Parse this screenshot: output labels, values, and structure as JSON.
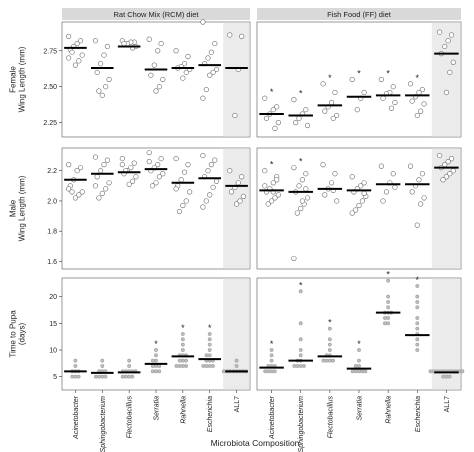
{
  "chart_data": {
    "type": "scatter",
    "facets": {
      "columns": [
        "Rat Chow Mix (RCM) diet",
        "Fish Food (FF) diet"
      ],
      "rows": [
        {
          "id": "female",
          "ylabel": "Female\nWing Length (mm)",
          "ylim": [
            2.15,
            2.95
          ],
          "yticks": [
            "2.25",
            "2.50",
            "2.75"
          ],
          "ytick_values": [
            2.25,
            2.5,
            2.75
          ]
        },
        {
          "id": "male",
          "ylabel": "Male\nWing Length (mm)",
          "ylim": [
            1.55,
            2.35
          ],
          "yticks": [
            "1.6",
            "1.8",
            "2.0",
            "2.2"
          ],
          "ytick_values": [
            1.6,
            1.8,
            2.0,
            2.2
          ]
        },
        {
          "id": "pupa",
          "ylabel": "Time to Pupa\n(days)",
          "ylim": [
            2.5,
            23.5
          ],
          "yticks": [
            "5",
            "10",
            "15",
            "20"
          ],
          "ytick_values": [
            5,
            10,
            15,
            20
          ]
        }
      ]
    },
    "categories": [
      "Acinetobacter",
      "Sphingobacterium",
      "Flectobacillus",
      "Serratia",
      "Rahnella",
      "Escherichia",
      "ALL7"
    ],
    "xlabel": "Microbiota Composition",
    "highlight_category": "ALL7",
    "marker_colors": {
      "open": "#ffffff",
      "stroke": "#666666",
      "pupa_fill": "#bdbdbd",
      "mean": "#000000",
      "panel_bg": "#ebebeb",
      "strip_bg": "#d9d9d9"
    },
    "panels": {
      "female": {
        "RCM": {
          "means": [
            2.77,
            2.63,
            2.78,
            2.62,
            2.63,
            2.65,
            2.63
          ],
          "significant": [
            false,
            false,
            false,
            false,
            false,
            false,
            false
          ],
          "points": [
            [
              2.85,
              2.82,
              2.8,
              2.78,
              2.76,
              2.72,
              2.68,
              2.65,
              2.74,
              2.7
            ],
            [
              2.82,
              2.78,
              2.72,
              2.66,
              2.6,
              2.55,
              2.5,
              2.44,
              2.47
            ],
            [
              2.82,
              2.81,
              2.81,
              2.8,
              2.8,
              2.78,
              2.77
            ],
            [
              2.83,
              2.8,
              2.75,
              2.65,
              2.58,
              2.55,
              2.5,
              2.47
            ],
            [
              2.75,
              2.71,
              2.66,
              2.64,
              2.63,
              2.62,
              2.6,
              2.56
            ],
            [
              2.95,
              2.8,
              2.74,
              2.7,
              2.66,
              2.62,
              2.6,
              2.58,
              2.48,
              2.42
            ],
            [
              2.86,
              2.85,
              2.62,
              2.3
            ]
          ]
        },
        "FF": {
          "means": [
            2.31,
            2.3,
            2.37,
            2.43,
            2.44,
            2.44,
            2.73
          ],
          "significant": [
            true,
            true,
            true,
            true,
            true,
            true,
            false
          ],
          "points": [
            [
              2.42,
              2.36,
              2.34,
              2.31,
              2.28,
              2.25,
              2.21
            ],
            [
              2.41,
              2.34,
              2.31,
              2.28,
              2.25,
              2.23
            ],
            [
              2.52,
              2.46,
              2.39,
              2.36,
              2.33,
              2.3,
              2.28
            ],
            [
              2.55,
              2.46,
              2.42,
              2.34
            ],
            [
              2.55,
              2.5,
              2.46,
              2.45,
              2.42,
              2.39,
              2.35
            ],
            [
              2.52,
              2.48,
              2.46,
              2.43,
              2.4,
              2.38,
              2.33,
              2.3
            ],
            [
              2.88,
              2.86,
              2.82,
              2.78,
              2.73,
              2.67,
              2.6,
              2.46
            ]
          ]
        }
      },
      "male": {
        "RCM": {
          "means": [
            2.14,
            2.18,
            2.19,
            2.21,
            2.12,
            2.15,
            2.1
          ],
          "significant": [
            false,
            false,
            false,
            false,
            false,
            false,
            false
          ],
          "points": [
            [
              2.24,
              2.22,
              2.2,
              2.14,
              2.1,
              2.06,
              2.04,
              2.02,
              2.06,
              2.08
            ],
            [
              2.29,
              2.27,
              2.24,
              2.2,
              2.16,
              2.12,
              2.08,
              2.05,
              2.02,
              2.1
            ],
            [
              2.28,
              2.25,
              2.22,
              2.2,
              2.18,
              2.16,
              2.13,
              2.11,
              2.2,
              2.24
            ],
            [
              2.32,
              2.28,
              2.24,
              2.22,
              2.2,
              2.18,
              2.16,
              2.12,
              2.1,
              2.26
            ],
            [
              2.28,
              2.24,
              2.19,
              2.14,
              2.1,
              2.06,
              2.0,
              1.97,
              1.93,
              2.08
            ],
            [
              2.3,
              2.27,
              2.24,
              2.2,
              2.16,
              2.13,
              2.09,
              2.04,
              2.0,
              1.96
            ],
            [
              2.2,
              2.16,
              2.12,
              2.09,
              2.06,
              2.03,
              2.0,
              1.98
            ]
          ]
        },
        "FF": {
          "means": [
            2.07,
            2.06,
            2.08,
            2.07,
            2.11,
            2.11,
            2.22
          ],
          "significant": [
            true,
            true,
            false,
            false,
            false,
            false,
            false
          ],
          "points": [
            [
              2.2,
              2.16,
              2.12,
              2.08,
              2.06,
              2.04,
              2.02,
              2.0,
              1.98,
              2.1,
              2.14,
              2.06
            ],
            [
              2.22,
              2.18,
              2.14,
              2.1,
              2.06,
              2.02,
              1.98,
              1.95,
              1.92,
              1.62,
              2.08,
              2.0
            ],
            [
              2.24,
              2.18,
              2.12,
              2.08,
              2.04,
              2.0,
              2.07
            ],
            [
              2.16,
              2.12,
              2.1,
              2.08,
              2.06,
              2.03,
              2.0,
              1.97,
              1.94,
              1.92,
              2.05
            ],
            [
              2.23,
              2.18,
              2.12,
              2.06,
              2.0,
              2.09
            ],
            [
              2.23,
              2.18,
              2.14,
              2.1,
              2.06,
              2.02,
              1.98,
              1.84
            ],
            [
              2.3,
              2.28,
              2.26,
              2.24,
              2.22,
              2.2,
              2.18,
              2.16,
              2.14
            ]
          ]
        }
      },
      "pupa": {
        "RCM": {
          "means": [
            6.0,
            5.7,
            5.8,
            7.4,
            8.8,
            8.3,
            6.0
          ],
          "significant": [
            false,
            false,
            false,
            true,
            true,
            true,
            false
          ],
          "points": [
            [
              8,
              7,
              6,
              6,
              6,
              5,
              5,
              5
            ],
            [
              8,
              7,
              6,
              6,
              6,
              5,
              5,
              5,
              5
            ],
            [
              8,
              7,
              6,
              6,
              6,
              6,
              6,
              5,
              5,
              5,
              5
            ],
            [
              10,
              9,
              8,
              8,
              7,
              7,
              7,
              6,
              6,
              6
            ],
            [
              13,
              12,
              11,
              10,
              9,
              9,
              9,
              8,
              8,
              8,
              7,
              7,
              7,
              7
            ],
            [
              13,
              12,
              11,
              10,
              9,
              9,
              8,
              8,
              8,
              7,
              7,
              7,
              7
            ],
            [
              8,
              7,
              6,
              6,
              6,
              6,
              6,
              6,
              6,
              6
            ]
          ]
        },
        "FF": {
          "means": [
            6.7,
            8.0,
            8.8,
            6.5,
            17.0,
            12.8,
            5.8
          ],
          "significant": [
            true,
            true,
            true,
            true,
            true,
            true,
            false
          ],
          "points": [
            [
              10,
              9,
              8,
              7,
              7,
              7,
              6,
              6,
              6,
              6
            ],
            [
              21,
              15,
              12,
              10,
              9,
              8,
              8,
              7,
              7,
              7,
              7
            ],
            [
              14,
              12,
              11,
              10,
              9,
              9,
              8,
              8,
              8,
              8
            ],
            [
              10,
              8,
              7,
              7,
              6,
              6,
              6,
              6,
              6
            ],
            [
              23,
              20,
              19,
              18,
              17,
              17,
              17,
              16,
              16,
              15,
              15
            ],
            [
              22,
              20,
              19,
              18,
              16,
              15,
              14,
              13,
              12,
              11,
              10
            ],
            [
              6,
              6,
              6,
              6,
              6,
              6,
              6,
              6,
              6,
              6,
              6,
              5,
              5,
              5
            ]
          ]
        }
      }
    }
  }
}
